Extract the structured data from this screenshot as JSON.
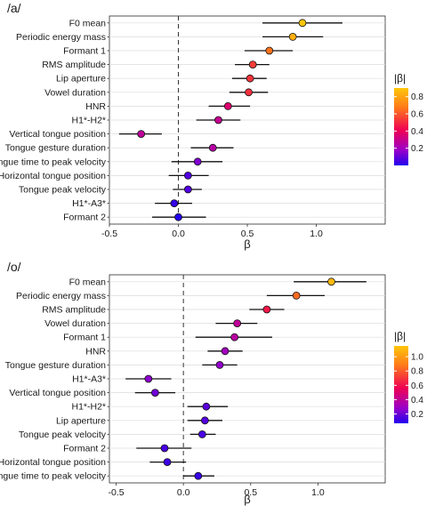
{
  "chart_data": [
    {
      "type": "scatter",
      "subtype": "forest-plot",
      "title": "/a/",
      "xlabel": "β",
      "ylabel": "",
      "xlim": [
        -0.5,
        1.5
      ],
      "xticks": [
        "-0.5",
        "0.0",
        "0.5",
        "1.0"
      ],
      "grid": "horizontal",
      "reference_line": 0,
      "legend": {
        "title": "|β|",
        "position": "right",
        "ticks": [
          "0.8",
          "0.6",
          "0.4",
          "0.2"
        ],
        "tick_values": [
          0.8,
          0.6,
          0.4,
          0.2
        ],
        "range": [
          0.0,
          0.9
        ]
      },
      "rows": [
        {
          "label": "F0 mean",
          "value": 0.9,
          "low": 0.61,
          "high": 1.19
        },
        {
          "label": "Periodic energy mass",
          "value": 0.83,
          "low": 0.61,
          "high": 1.05
        },
        {
          "label": "Formant 1",
          "value": 0.66,
          "low": 0.48,
          "high": 0.83
        },
        {
          "label": "RMS amplitude",
          "value": 0.54,
          "low": 0.41,
          "high": 0.66
        },
        {
          "label": "Lip aperture",
          "value": 0.52,
          "low": 0.39,
          "high": 0.64
        },
        {
          "label": "Vowel duration",
          "value": 0.51,
          "low": 0.37,
          "high": 0.65
        },
        {
          "label": "HNR",
          "value": 0.36,
          "low": 0.22,
          "high": 0.52
        },
        {
          "label": "H1*-H2*",
          "value": 0.29,
          "low": 0.13,
          "high": 0.45
        },
        {
          "label": "Vertical tongue position",
          "value": -0.27,
          "low": -0.43,
          "high": -0.12
        },
        {
          "label": "Tongue gesture duration",
          "value": 0.25,
          "low": 0.09,
          "high": 0.4
        },
        {
          "label": "Tongue time to peak velocity",
          "value": 0.14,
          "low": -0.05,
          "high": 0.32
        },
        {
          "label": "Horizontal tongue position",
          "value": 0.07,
          "low": -0.07,
          "high": 0.22
        },
        {
          "label": "Tongue peak velocity",
          "value": 0.07,
          "low": -0.04,
          "high": 0.17
        },
        {
          "label": "H1*-A3*",
          "value": -0.03,
          "low": -0.17,
          "high": 0.1
        },
        {
          "label": "Formant 2",
          "value": 0.0,
          "low": -0.19,
          "high": 0.2
        }
      ]
    },
    {
      "type": "scatter",
      "subtype": "forest-plot",
      "title": "/o/",
      "xlabel": "β",
      "ylabel": "",
      "xlim": [
        -0.55,
        1.5
      ],
      "xticks": [
        "-0.5",
        "0.0",
        "0.5",
        "1.0"
      ],
      "grid": "horizontal",
      "reference_line": 0,
      "legend": {
        "title": "|β|",
        "position": "right",
        "ticks": [
          "1.0",
          "0.8",
          "0.6",
          "0.4",
          "0.2"
        ],
        "tick_values": [
          1.0,
          0.8,
          0.6,
          0.4,
          0.2
        ],
        "range": [
          0.07,
          1.15
        ]
      },
      "rows": [
        {
          "label": "F0 mean",
          "value": 1.1,
          "low": 0.82,
          "high": 1.36
        },
        {
          "label": "Periodic energy mass",
          "value": 0.84,
          "low": 0.62,
          "high": 1.05
        },
        {
          "label": "RMS amplitude",
          "value": 0.62,
          "low": 0.49,
          "high": 0.75
        },
        {
          "label": "Vowel duration",
          "value": 0.4,
          "low": 0.24,
          "high": 0.55
        },
        {
          "label": "Formant 1",
          "value": 0.38,
          "low": 0.09,
          "high": 0.66
        },
        {
          "label": "HNR",
          "value": 0.31,
          "low": 0.18,
          "high": 0.44
        },
        {
          "label": "Tongue gesture duration",
          "value": 0.27,
          "low": 0.14,
          "high": 0.4
        },
        {
          "label": "H1*-A3*",
          "value": -0.26,
          "low": -0.43,
          "high": -0.09
        },
        {
          "label": "Vertical tongue position",
          "value": -0.21,
          "low": -0.36,
          "high": -0.06
        },
        {
          "label": "H1*-H2*",
          "value": 0.17,
          "low": 0.03,
          "high": 0.33
        },
        {
          "label": "Lip aperture",
          "value": 0.16,
          "low": 0.03,
          "high": 0.29
        },
        {
          "label": "Tongue peak velocity",
          "value": 0.14,
          "low": 0.05,
          "high": 0.24
        },
        {
          "label": "Formant 2",
          "value": -0.14,
          "low": -0.35,
          "high": 0.06
        },
        {
          "label": "Horizontal tongue position",
          "value": -0.12,
          "low": -0.25,
          "high": 0.02
        },
        {
          "label": "Tongue time to peak velocity",
          "value": 0.11,
          "low": 0.0,
          "high": 0.23
        }
      ]
    }
  ]
}
